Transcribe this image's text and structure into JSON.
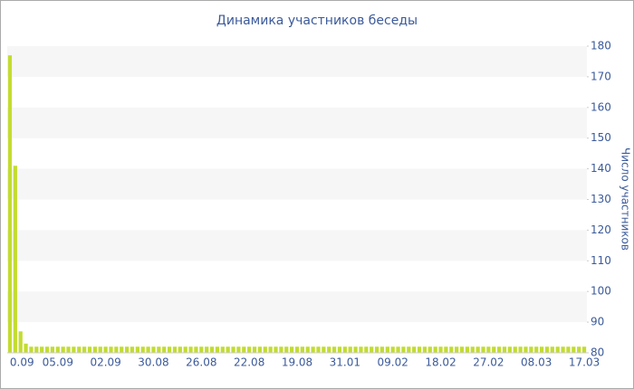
{
  "chart_data": {
    "type": "bar",
    "title": "Динамика участников беседы",
    "y_label": "Число участников",
    "categories": [
      "0.09",
      null,
      null,
      null,
      null,
      null,
      null,
      null,
      null,
      "05.09",
      null,
      null,
      null,
      null,
      null,
      null,
      null,
      null,
      "02.09",
      null,
      null,
      null,
      null,
      null,
      null,
      null,
      null,
      "30.08",
      null,
      null,
      null,
      null,
      null,
      null,
      null,
      null,
      "26.08",
      null,
      null,
      null,
      null,
      null,
      null,
      null,
      null,
      "22.08",
      null,
      null,
      null,
      null,
      null,
      null,
      null,
      null,
      "19.08",
      null,
      null,
      null,
      null,
      null,
      null,
      null,
      null,
      "31.01",
      null,
      null,
      null,
      null,
      null,
      null,
      null,
      null,
      "09.02",
      null,
      null,
      null,
      null,
      null,
      null,
      null,
      null,
      "18.02",
      null,
      null,
      null,
      null,
      null,
      null,
      null,
      null,
      "27.02",
      null,
      null,
      null,
      null,
      null,
      null,
      null,
      null,
      "08.03",
      null,
      null,
      null,
      null,
      null,
      null,
      null,
      null,
      "17.03"
    ],
    "values": [
      177,
      141,
      87,
      83,
      82,
      82,
      82,
      82,
      82,
      82,
      82,
      82,
      82,
      82,
      82,
      82,
      82,
      82,
      82,
      82,
      82,
      82,
      82,
      82,
      82,
      82,
      82,
      82,
      82,
      82,
      82,
      82,
      82,
      82,
      82,
      82,
      82,
      82,
      82,
      82,
      82,
      82,
      82,
      82,
      82,
      82,
      82,
      82,
      82,
      82,
      82,
      82,
      82,
      82,
      82,
      82,
      82,
      82,
      82,
      82,
      82,
      82,
      82,
      82,
      82,
      82,
      82,
      82,
      82,
      82,
      82,
      82,
      82,
      82,
      82,
      82,
      82,
      82,
      82,
      82,
      82,
      82,
      82,
      82,
      82,
      82,
      82,
      82,
      82,
      82,
      82,
      82,
      82,
      82,
      82,
      82,
      82,
      82,
      82,
      82,
      82,
      82,
      82,
      82,
      82,
      82,
      82,
      82,
      82
    ],
    "color": "#c3dc30",
    "band_color": "#f6f6f6",
    "ylim": [
      80,
      180
    ],
    "yticks": [
      80,
      90,
      100,
      110,
      120,
      130,
      140,
      150,
      160,
      170,
      180
    ],
    "y_axis_side": "right"
  }
}
